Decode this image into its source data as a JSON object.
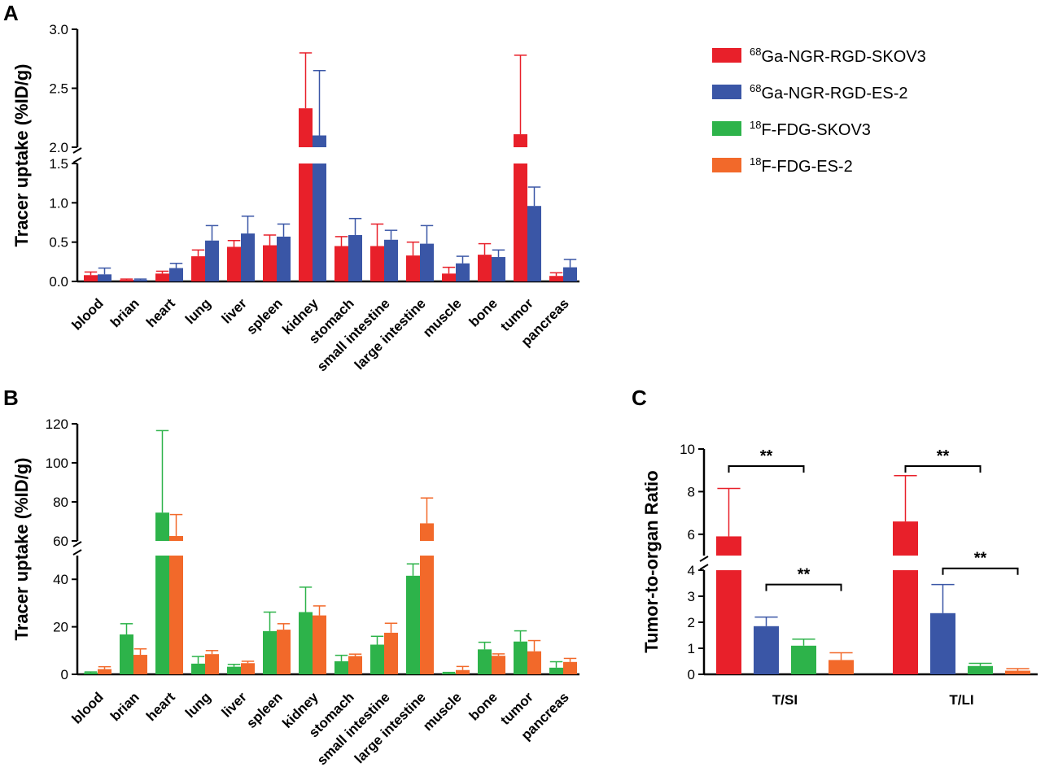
{
  "colors": {
    "ga_skov3": "#e8202a",
    "ga_es2": "#3a56a6",
    "fdg_skov3": "#2db34a",
    "fdg_es2": "#f2692a"
  },
  "legend": [
    {
      "sup": "68",
      "label": "Ga-NGR-RGD-SKOV3",
      "color_key": "ga_skov3"
    },
    {
      "sup": "68",
      "label": "Ga-NGR-RGD-ES-2",
      "color_key": "ga_es2"
    },
    {
      "sup": "18",
      "label": "F-FDG-SKOV3",
      "color_key": "fdg_skov3"
    },
    {
      "sup": "18",
      "label": "F-FDG-ES-2",
      "color_key": "fdg_es2"
    }
  ],
  "chart_data": [
    {
      "panel": "A",
      "type": "bar",
      "ylabel": "Tracer uptake (%ID/g)",
      "categories": [
        "blood",
        "brian",
        "heart",
        "lung",
        "liver",
        "spleen",
        "kidney",
        "stomach",
        "small intestine",
        "large intestine",
        "muscle",
        "bone",
        "tumor",
        "pancreas"
      ],
      "y_break": {
        "lower": [
          0,
          1.5
        ],
        "upper": [
          2.0,
          3.0
        ]
      },
      "yticks_lower": [
        "0.0",
        "0.5",
        "1.0",
        "1.5"
      ],
      "yticks_upper": [
        "2.0",
        "2.5",
        "3.0"
      ],
      "series": [
        {
          "name": "68Ga-NGR-RGD-SKOV3",
          "color_key": "ga_skov3",
          "values": [
            0.08,
            0.02,
            0.1,
            0.32,
            0.44,
            0.46,
            2.33,
            0.45,
            0.45,
            0.33,
            0.1,
            0.34,
            2.11,
            0.07
          ],
          "errors": [
            0.04,
            0.01,
            0.03,
            0.08,
            0.08,
            0.13,
            0.47,
            0.12,
            0.28,
            0.17,
            0.08,
            0.14,
            0.67,
            0.04
          ]
        },
        {
          "name": "68Ga-NGR-RGD-ES-2",
          "color_key": "ga_es2",
          "values": [
            0.09,
            0.02,
            0.17,
            0.52,
            0.61,
            0.57,
            2.1,
            0.59,
            0.53,
            0.48,
            0.23,
            0.31,
            0.96,
            0.18
          ]
        },
        {
          "name": "68Ga-NGR-RGD-ES-2 error",
          "color_key": "ga_es2",
          "values": [
            0.08,
            0.01,
            0.06,
            0.19,
            0.22,
            0.16,
            0.55,
            0.21,
            0.12,
            0.23,
            0.09,
            0.09,
            0.24,
            0.1
          ]
        }
      ]
    },
    {
      "panel": "B",
      "type": "bar",
      "ylabel": "Tracer uptake (%ID/g)",
      "categories": [
        "blood",
        "brian",
        "heart",
        "lung",
        "liver",
        "spleen",
        "kidney",
        "stomach",
        "small intestine",
        "large intestine",
        "muscle",
        "bone",
        "tumor",
        "pancreas"
      ],
      "y_break": {
        "lower": [
          0,
          50
        ],
        "upper": [
          60,
          120
        ]
      },
      "yticks_lower": [
        "0",
        "20",
        "40"
      ],
      "yticks_upper": [
        "60",
        "80",
        "100",
        "120"
      ],
      "series": [
        {
          "name": "18F-FDG-SKOV3",
          "color_key": "fdg_skov3",
          "values": [
            0.7,
            16.8,
            74.5,
            4.5,
            3.2,
            18.2,
            26.2,
            5.5,
            12.5,
            41.5,
            0.5,
            10.5,
            13.8,
            2.8
          ],
          "errors": [
            0.3,
            4.5,
            42.0,
            3.0,
            1.0,
            8.0,
            10.5,
            2.5,
            3.5,
            5.0,
            0.3,
            3.0,
            4.5,
            2.5
          ]
        },
        {
          "name": "18F-FDG-ES-2",
          "color_key": "fdg_es2",
          "values": [
            2.2,
            8.2,
            62.5,
            8.5,
            4.7,
            18.8,
            24.8,
            7.7,
            17.5,
            69.0,
            1.8,
            7.8,
            9.7,
            5.2
          ],
          "errors": [
            1.0,
            2.5,
            11.0,
            1.5,
            0.8,
            2.5,
            4.0,
            0.8,
            4.0,
            13.0,
            1.5,
            0.8,
            4.5,
            1.5
          ]
        }
      ]
    },
    {
      "panel": "C",
      "type": "bar",
      "ylabel": "Tumor-to-organ Ratio",
      "categories": [
        "T/SI",
        "T/LI"
      ],
      "y_break": {
        "lower": [
          0,
          4
        ],
        "upper": [
          5,
          10
        ]
      },
      "yticks_lower": [
        "0",
        "1",
        "2",
        "3",
        "4"
      ],
      "yticks_upper": [
        "6",
        "8",
        "10"
      ],
      "series": [
        {
          "name": "68Ga-NGR-RGD-SKOV3",
          "color_key": "ga_skov3",
          "values": [
            5.9,
            6.6
          ],
          "errors": [
            2.25,
            2.15
          ]
        },
        {
          "name": "68Ga-NGR-RGD-ES-2",
          "color_key": "ga_es2",
          "values": [
            1.85,
            2.35
          ],
          "errors": [
            0.35,
            1.1
          ]
        },
        {
          "name": "18F-FDG-SKOV3",
          "color_key": "fdg_skov3",
          "values": [
            1.1,
            0.32
          ],
          "errors": [
            0.25,
            0.1
          ]
        },
        {
          "name": "18F-FDG-ES-2",
          "color_key": "fdg_es2",
          "values": [
            0.55,
            0.14
          ],
          "errors": [
            0.28,
            0.08
          ]
        }
      ],
      "significance": [
        {
          "label": "**",
          "category": 0,
          "from_series": 0,
          "to_series": 2,
          "level": 9.2
        },
        {
          "label": "**",
          "category": 0,
          "from_series": 1,
          "to_series": 3,
          "level": 3.45
        },
        {
          "label": "**",
          "category": 1,
          "from_series": 0,
          "to_series": 2,
          "level": 9.2
        },
        {
          "label": "**",
          "category": 1,
          "from_series": 1,
          "to_series": 3,
          "level": 4.4
        }
      ]
    }
  ]
}
